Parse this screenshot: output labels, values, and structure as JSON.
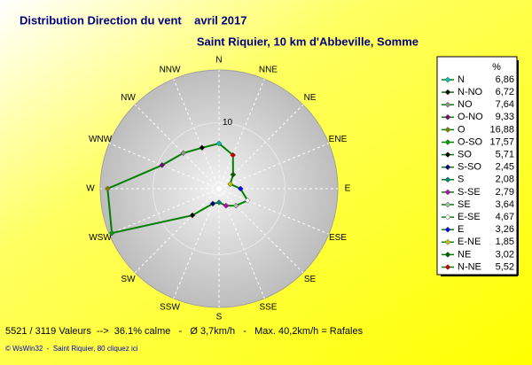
{
  "chart_data": {
    "type": "windrose",
    "title": "Distribution Direction du vent    avril 2017",
    "subtitle": "Saint Riquier, 10 km d'Abbeville, Somme",
    "directions": [
      "N",
      "NNE",
      "NE",
      "ENE",
      "E",
      "ESE",
      "SE",
      "SSE",
      "S",
      "SSW",
      "SW",
      "WSW",
      "W",
      "WNW",
      "NW",
      "NNW"
    ],
    "legend_header": "%",
    "categories": [
      "N",
      "N-NO",
      "NO",
      "O-NO",
      "O",
      "O-SO",
      "SO",
      "S-SO",
      "S",
      "S-SE",
      "SE",
      "E-SE",
      "E",
      "E-NE",
      "NE",
      "N-NE"
    ],
    "values": [
      6.86,
      6.72,
      7.64,
      9.33,
      16.88,
      17.57,
      5.71,
      2.45,
      2.08,
      2.79,
      3.64,
      4.67,
      3.26,
      1.85,
      3.02,
      5.52
    ],
    "value_labels": [
      "6,86",
      "6,72",
      "7,64",
      "9,33",
      "16,88",
      "17,57",
      "5,71",
      "2,45",
      "2,08",
      "2,79",
      "3,64",
      "4,67",
      "3,26",
      "1,85",
      "3,02",
      "5,52"
    ],
    "colors": [
      "#00c0c0",
      "#000000",
      "#909090",
      "#800080",
      "#808000",
      "#00a000",
      "#000000",
      "#000080",
      "#008080",
      "#c000c0",
      "#a0c0a0",
      "#ffffff",
      "#0000ff",
      "#c0c000",
      "#006000",
      "#d00000"
    ],
    "line_color": "#008000",
    "rlim": [
      0,
      18
    ],
    "rticks": [
      10
    ],
    "footer": "5521 / 3119 Valeurs  -->  36.1% calme   -   Ø 3,7km/h   -   Max. 40,2km/h = Rafales",
    "credit": "© WsWin32  -  Saint Riquier, 80 cliquez ici"
  }
}
